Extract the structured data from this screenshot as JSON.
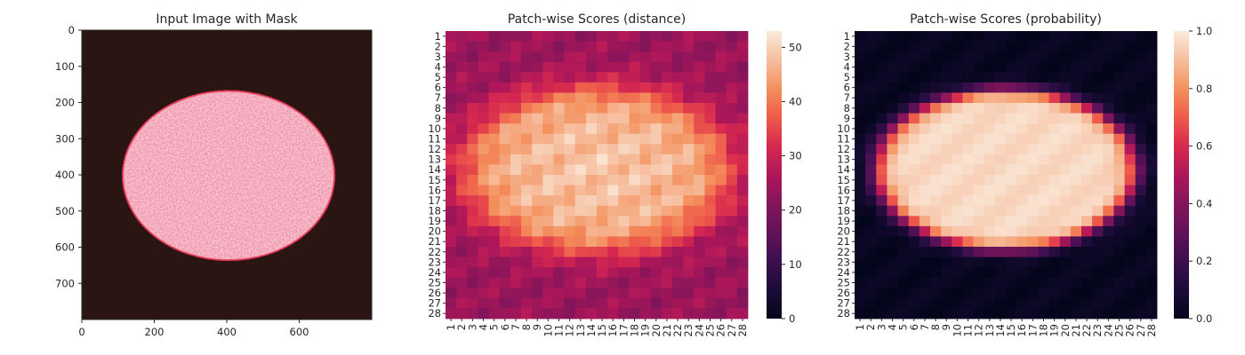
{
  "chart_data": [
    {
      "type": "image",
      "title": "Input Image with Mask",
      "xticks": [
        0,
        200,
        400,
        600
      ],
      "yticks": [
        0,
        100,
        200,
        300,
        400,
        500,
        600,
        700
      ],
      "xlim": [
        0,
        800
      ],
      "ylim": [
        800,
        0
      ],
      "image": {
        "background": "#2a1512",
        "object_color": "#f6d3d8",
        "edge_color": "#e0324f",
        "ellipse_center": [
          405,
          402
        ],
        "ellipse_radius": [
          292,
          234
        ]
      }
    },
    {
      "type": "heatmap",
      "title": "Patch-wise Scores (distance)",
      "rows": [
        "1",
        "2",
        "3",
        "4",
        "5",
        "6",
        "7",
        "8",
        "9",
        "10",
        "11",
        "12",
        "13",
        "14",
        "15",
        "16",
        "17",
        "18",
        "19",
        "20",
        "21",
        "22",
        "23",
        "24",
        "25",
        "26",
        "27",
        "28"
      ],
      "cols": [
        "1",
        "2",
        "3",
        "4",
        "5",
        "6",
        "7",
        "8",
        "9",
        "10",
        "11",
        "12",
        "13",
        "14",
        "15",
        "16",
        "17",
        "18",
        "19",
        "20",
        "21",
        "22",
        "23",
        "24",
        "25",
        "26",
        "27",
        "28"
      ],
      "vmin": 0,
      "vmax": 53,
      "colorbar_ticks": [
        0,
        10,
        20,
        30,
        40,
        50
      ],
      "colormap": "rocket",
      "model": {
        "center": [
          14.5,
          14.0
        ],
        "radius": [
          12.3,
          8.0
        ],
        "inside_value": 47,
        "outside_value": 24
      }
    },
    {
      "type": "heatmap",
      "title": "Patch-wise Scores (probability)",
      "rows": [
        "1",
        "2",
        "3",
        "4",
        "5",
        "6",
        "7",
        "8",
        "9",
        "10",
        "11",
        "12",
        "13",
        "14",
        "15",
        "16",
        "17",
        "18",
        "19",
        "20",
        "21",
        "22",
        "23",
        "24",
        "25",
        "26",
        "27",
        "28"
      ],
      "cols": [
        "1",
        "2",
        "3",
        "4",
        "5",
        "6",
        "7",
        "8",
        "9",
        "10",
        "11",
        "12",
        "13",
        "14",
        "15",
        "16",
        "17",
        "18",
        "19",
        "20",
        "21",
        "22",
        "23",
        "24",
        "25",
        "26",
        "27",
        "28"
      ],
      "vmin": 0,
      "vmax": 1,
      "colorbar_ticks": [
        "0.0",
        "0.2",
        "0.4",
        "0.6",
        "0.8",
        "1.0"
      ],
      "colormap": "rocket",
      "model": {
        "center": [
          14.5,
          14.0
        ],
        "radius": [
          12.0,
          7.8
        ],
        "inside_value": 0.96,
        "outside_value": 0.02
      }
    }
  ]
}
